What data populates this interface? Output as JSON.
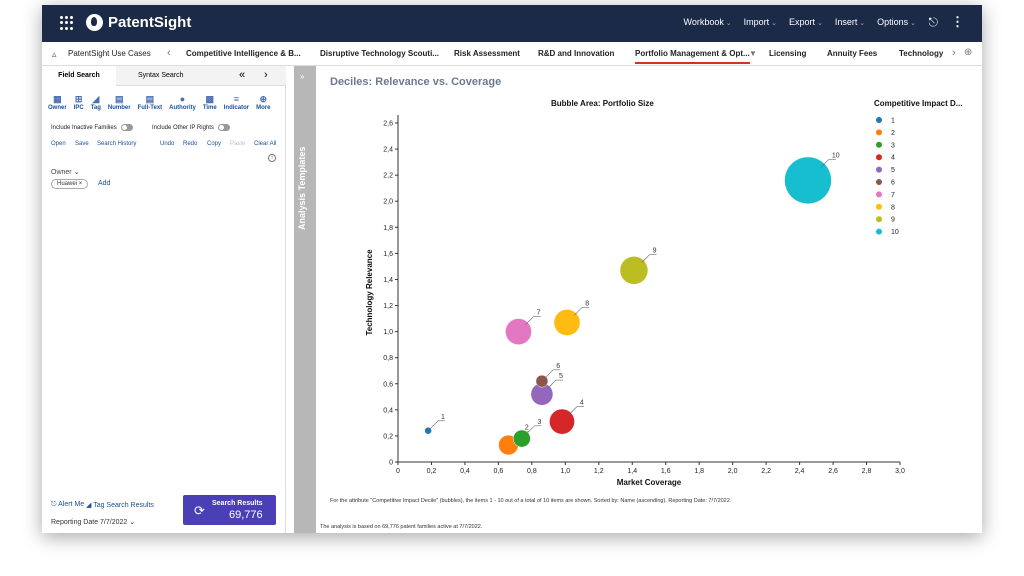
{
  "app": {
    "name": "PatentSight"
  },
  "topbar": {
    "menus": [
      "Workbook",
      "Import",
      "Export",
      "Insert",
      "Options"
    ]
  },
  "tabs": [
    "PatentSight Use Cases",
    "Competitive Intelligence & B...",
    "Disruptive Technology Scouti...",
    "Risk Assessment",
    "R&D and Innovation",
    "Portfolio Management & Opt...",
    "Licensing",
    "Annuity Fees",
    "Technology C"
  ],
  "active_tab": "Portfolio Management & Opt...",
  "left_panel": {
    "tab_field": "Field Search",
    "tab_syntax": "Syntax Search",
    "icons": [
      "Owner",
      "IPC",
      "Tag",
      "Number",
      "Full-Text",
      "Authority",
      "Time",
      "Indicator",
      "More"
    ],
    "toggle_inactive": "Include Inactive Families",
    "toggle_ip": "Include Other IP Rights",
    "actions": [
      "Open",
      "Save",
      "Search History",
      "Undo",
      "Redo",
      "Copy",
      "Paste",
      "Clear All"
    ],
    "owner_label": "Owner",
    "owner_chip": "Huawei",
    "add_link": "Add",
    "alert_me": "Alert Me",
    "tag_search": "Tag Search Results",
    "reporting_date": "Reporting Date 7/7/2022",
    "search_button": "Search Results",
    "result_count": "69,776"
  },
  "templates_label": "Analysis Templates",
  "chart_data": {
    "type": "scatter",
    "title": "Deciles: Relevance vs. Coverage",
    "subtitle": "Bubble Area:  Portfolio Size",
    "xlabel": "Market Coverage",
    "ylabel": "Technology Relevance",
    "xlim": [
      0,
      3.0
    ],
    "ylim": [
      0,
      2.6
    ],
    "x_ticks": [
      "0",
      "0,2",
      "0,4",
      "0,6",
      "0,8",
      "1,0",
      "1,2",
      "1,4",
      "1,6",
      "1,8",
      "2,0",
      "2,2",
      "2,4",
      "2,6",
      "2,8",
      "3,0"
    ],
    "y_ticks": [
      "0",
      "0,2",
      "0,4",
      "0,6",
      "0,8",
      "1,0",
      "1,2",
      "1,4",
      "1,6",
      "1,8",
      "2,0",
      "2,2",
      "2,4",
      "2,6"
    ],
    "legend_title": "Competitive Impact D...",
    "legend_position": "right",
    "points": [
      {
        "label": "1",
        "x": 0.18,
        "y": 0.24,
        "size": 1,
        "color": "#1f77b4"
      },
      {
        "label": "2",
        "x": 0.66,
        "y": 0.13,
        "size": 8,
        "color": "#ff7f0e"
      },
      {
        "label": "3",
        "x": 0.74,
        "y": 0.18,
        "size": 6,
        "color": "#2ca02c"
      },
      {
        "label": "4",
        "x": 0.98,
        "y": 0.31,
        "size": 13,
        "color": "#d62728"
      },
      {
        "label": "5",
        "x": 0.86,
        "y": 0.52,
        "size": 10,
        "color": "#9467bd"
      },
      {
        "label": "6",
        "x": 0.86,
        "y": 0.62,
        "size": 3,
        "color": "#8c564b"
      },
      {
        "label": "7",
        "x": 0.72,
        "y": 1.0,
        "size": 14,
        "color": "#e377c2"
      },
      {
        "label": "8",
        "x": 1.01,
        "y": 1.07,
        "size": 14,
        "color": "#ffbb11"
      },
      {
        "label": "9",
        "x": 1.41,
        "y": 1.47,
        "size": 16,
        "color": "#bcbd22"
      },
      {
        "label": "10",
        "x": 2.45,
        "y": 2.16,
        "size": 45,
        "color": "#17becf"
      }
    ]
  },
  "footnote1": "For the attribute \"Competitive Impact Decile\" (bubbles), the items 1 - 10 out of a total of 10 items are shown. Sorted by: Name (ascending). Reporting Date: 7/7/2022.",
  "footnote2": "The analysis is based on 69,776 patent families active at 7/7/2022."
}
